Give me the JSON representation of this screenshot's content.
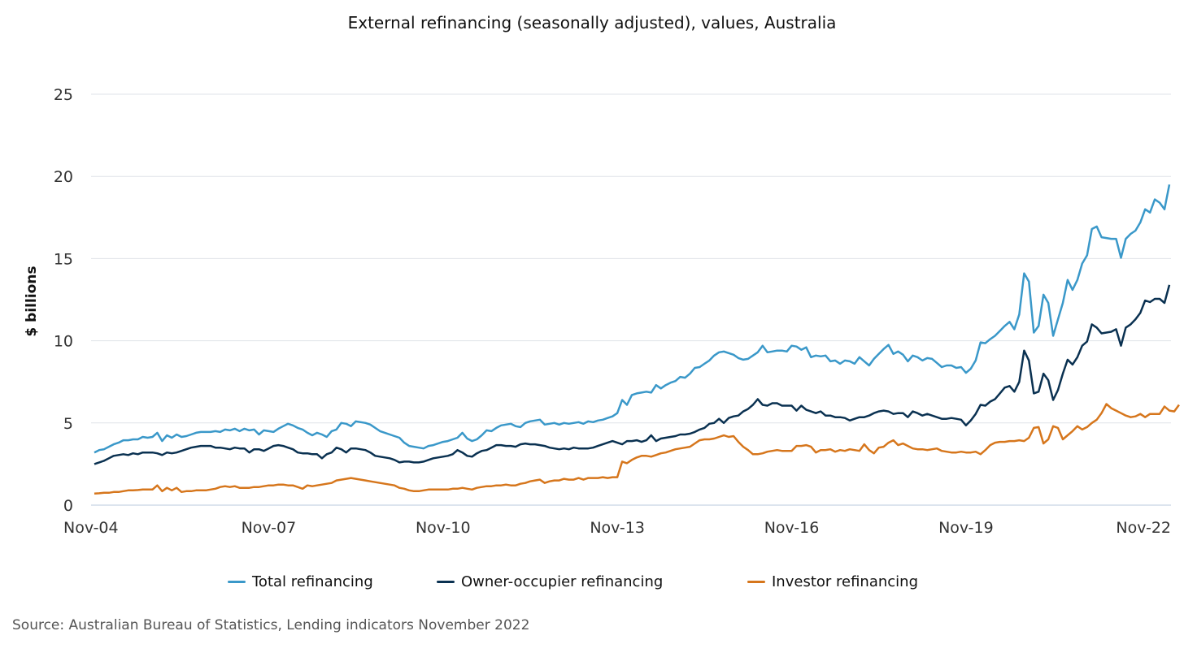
{
  "chart_data": {
    "type": "line",
    "title": "External refinancing (seasonally adjusted), values, Australia",
    "ylabel": "$ billions",
    "xlabel": "",
    "ylim": [
      0,
      25
    ],
    "yticks": [
      "0",
      "5",
      "10",
      "15",
      "20",
      "25"
    ],
    "xticks": [
      "Nov-04",
      "Nov-07",
      "Nov-10",
      "Nov-13",
      "Nov-16",
      "Nov-19",
      "Nov-22"
    ],
    "x_start": "Nov-04",
    "x_end": "Nov-22",
    "frequency": "monthly",
    "grid": "horizontal",
    "legend_position": "bottom",
    "source": "Source: Australian Bureau of Statistics, Lending indicators November 2022",
    "series": [
      {
        "name": "Total refinancing",
        "color": "#3a98c9",
        "values": [
          3.2,
          3.35,
          3.4,
          3.55,
          3.7,
          3.8,
          3.95,
          3.95,
          4.0,
          4.0,
          4.15,
          4.1,
          4.15,
          4.4,
          3.9,
          4.25,
          4.1,
          4.3,
          4.15,
          4.2,
          4.3,
          4.4,
          4.45,
          4.45,
          4.45,
          4.5,
          4.45,
          4.6,
          4.55,
          4.65,
          4.5,
          4.65,
          4.55,
          4.6,
          4.3,
          4.55,
          4.5,
          4.45,
          4.65,
          4.8,
          4.95,
          4.85,
          4.7,
          4.6,
          4.4,
          4.25,
          4.4,
          4.3,
          4.15,
          4.5,
          4.6,
          5.0,
          4.95,
          4.8,
          5.1,
          5.05,
          5.0,
          4.9,
          4.7,
          4.5,
          4.4,
          4.3,
          4.2,
          4.1,
          3.8,
          3.6,
          3.55,
          3.5,
          3.45,
          3.6,
          3.65,
          3.75,
          3.85,
          3.9,
          4.0,
          4.1,
          4.4,
          4.05,
          3.9,
          4.0,
          4.25,
          4.55,
          4.5,
          4.7,
          4.85,
          4.9,
          4.95,
          4.8,
          4.75,
          5.0,
          5.1,
          5.15,
          5.2,
          4.9,
          4.95,
          5.0,
          4.9,
          5.0,
          4.95,
          5.0,
          5.05,
          4.95,
          5.1,
          5.05,
          5.15,
          5.2,
          5.3,
          5.4,
          5.6,
          6.4,
          6.1,
          6.7,
          6.8,
          6.85,
          6.9,
          6.85,
          7.3,
          7.1,
          7.3,
          7.45,
          7.55,
          7.8,
          7.75,
          8.0,
          8.35,
          8.4,
          8.6,
          8.8,
          9.1,
          9.3,
          9.35,
          9.25,
          9.15,
          8.95,
          8.85,
          8.9,
          9.1,
          9.3,
          9.7,
          9.3,
          9.35,
          9.4,
          9.4,
          9.35,
          9.7,
          9.65,
          9.45,
          9.6,
          9.0,
          9.1,
          9.05,
          9.1,
          8.75,
          8.8,
          8.6,
          8.8,
          8.75,
          8.6,
          9.0,
          8.75,
          8.5,
          8.9,
          9.2,
          9.5,
          9.75,
          9.2,
          9.35,
          9.15,
          8.75,
          9.1,
          9.0,
          8.8,
          8.95,
          8.9,
          8.65,
          8.4,
          8.5,
          8.5,
          8.35,
          8.4,
          8.05,
          8.3,
          8.8,
          9.9,
          9.85,
          10.1,
          10.3,
          10.6,
          10.9,
          11.15,
          10.7,
          11.6,
          14.1,
          13.6,
          10.5,
          10.9,
          12.8,
          12.3,
          10.3,
          11.3,
          12.3,
          13.7,
          13.1,
          13.7,
          14.7,
          15.2,
          16.8,
          16.95,
          16.3,
          16.25,
          16.2,
          16.2,
          15.05,
          16.2,
          16.5,
          16.7,
          17.2,
          18.0,
          17.8,
          18.6,
          18.4,
          18.0,
          19.5
        ]
      },
      {
        "name": "Owner-occupier refinancing",
        "color": "#0a3151",
        "values": [
          2.5,
          2.6,
          2.7,
          2.85,
          3.0,
          3.05,
          3.1,
          3.05,
          3.15,
          3.1,
          3.2,
          3.2,
          3.2,
          3.15,
          3.05,
          3.2,
          3.15,
          3.2,
          3.3,
          3.4,
          3.5,
          3.55,
          3.6,
          3.6,
          3.6,
          3.5,
          3.5,
          3.45,
          3.4,
          3.5,
          3.45,
          3.45,
          3.2,
          3.4,
          3.4,
          3.3,
          3.45,
          3.6,
          3.65,
          3.6,
          3.5,
          3.4,
          3.2,
          3.15,
          3.15,
          3.1,
          3.1,
          2.85,
          3.1,
          3.2,
          3.5,
          3.4,
          3.2,
          3.45,
          3.45,
          3.4,
          3.35,
          3.2,
          3.0,
          2.95,
          2.9,
          2.85,
          2.75,
          2.6,
          2.65,
          2.65,
          2.6,
          2.6,
          2.65,
          2.75,
          2.85,
          2.9,
          2.95,
          3.0,
          3.1,
          3.35,
          3.2,
          3.0,
          2.95,
          3.15,
          3.3,
          3.35,
          3.5,
          3.65,
          3.65,
          3.6,
          3.6,
          3.55,
          3.7,
          3.75,
          3.7,
          3.7,
          3.65,
          3.6,
          3.5,
          3.45,
          3.4,
          3.45,
          3.4,
          3.5,
          3.45,
          3.45,
          3.45,
          3.5,
          3.6,
          3.7,
          3.8,
          3.9,
          3.8,
          3.7,
          3.9,
          3.9,
          3.95,
          3.85,
          3.95,
          4.25,
          3.9,
          4.05,
          4.1,
          4.15,
          4.2,
          4.3,
          4.3,
          4.35,
          4.45,
          4.6,
          4.7,
          4.95,
          5.0,
          5.25,
          5.0,
          5.3,
          5.4,
          5.45,
          5.7,
          5.85,
          6.1,
          6.45,
          6.1,
          6.05,
          6.2,
          6.2,
          6.05,
          6.05,
          6.05,
          5.75,
          6.05,
          5.8,
          5.7,
          5.6,
          5.7,
          5.45,
          5.45,
          5.35,
          5.35,
          5.3,
          5.15,
          5.25,
          5.35,
          5.35,
          5.45,
          5.6,
          5.7,
          5.75,
          5.7,
          5.55,
          5.6,
          5.6,
          5.35,
          5.7,
          5.6,
          5.45,
          5.55,
          5.45,
          5.35,
          5.25,
          5.25,
          5.3,
          5.25,
          5.2,
          4.85,
          5.15,
          5.55,
          6.1,
          6.05,
          6.3,
          6.45,
          6.8,
          7.15,
          7.25,
          6.9,
          7.5,
          9.4,
          8.8,
          6.8,
          6.9,
          8.0,
          7.6,
          6.4,
          7.0,
          8.0,
          8.85,
          8.55,
          9.0,
          9.7,
          9.95,
          11.0,
          10.8,
          10.45,
          10.5,
          10.55,
          10.7,
          9.7,
          10.8,
          11.0,
          11.3,
          11.7,
          12.45,
          12.35,
          12.55,
          12.55,
          12.3,
          13.4
        ]
      },
      {
        "name": "Investor refinancing",
        "color": "#d6761c",
        "values": [
          0.7,
          0.72,
          0.75,
          0.75,
          0.8,
          0.8,
          0.85,
          0.9,
          0.9,
          0.92,
          0.95,
          0.95,
          0.95,
          1.2,
          0.85,
          1.05,
          0.9,
          1.05,
          0.8,
          0.85,
          0.85,
          0.9,
          0.9,
          0.9,
          0.95,
          1.0,
          1.1,
          1.15,
          1.1,
          1.15,
          1.05,
          1.05,
          1.05,
          1.1,
          1.1,
          1.15,
          1.2,
          1.2,
          1.25,
          1.25,
          1.2,
          1.2,
          1.1,
          1.0,
          1.2,
          1.15,
          1.2,
          1.25,
          1.3,
          1.35,
          1.5,
          1.55,
          1.6,
          1.65,
          1.6,
          1.55,
          1.5,
          1.45,
          1.4,
          1.35,
          1.3,
          1.25,
          1.2,
          1.05,
          1.0,
          0.9,
          0.85,
          0.85,
          0.9,
          0.95,
          0.95,
          0.95,
          0.95,
          0.95,
          1.0,
          1.0,
          1.05,
          1.0,
          0.95,
          1.05,
          1.1,
          1.15,
          1.15,
          1.2,
          1.2,
          1.25,
          1.2,
          1.2,
          1.3,
          1.35,
          1.45,
          1.5,
          1.55,
          1.35,
          1.45,
          1.5,
          1.5,
          1.6,
          1.55,
          1.55,
          1.65,
          1.55,
          1.65,
          1.65,
          1.65,
          1.7,
          1.65,
          1.7,
          1.7,
          2.65,
          2.55,
          2.75,
          2.9,
          3.0,
          3.0,
          2.95,
          3.05,
          3.15,
          3.2,
          3.3,
          3.4,
          3.45,
          3.5,
          3.55,
          3.75,
          3.95,
          4.0,
          4.0,
          4.05,
          4.15,
          4.25,
          4.15,
          4.2,
          3.85,
          3.55,
          3.35,
          3.1,
          3.1,
          3.15,
          3.25,
          3.3,
          3.35,
          3.3,
          3.3,
          3.3,
          3.6,
          3.6,
          3.65,
          3.55,
          3.2,
          3.35,
          3.35,
          3.4,
          3.25,
          3.35,
          3.3,
          3.4,
          3.35,
          3.3,
          3.7,
          3.35,
          3.15,
          3.5,
          3.55,
          3.8,
          3.95,
          3.65,
          3.75,
          3.6,
          3.45,
          3.4,
          3.4,
          3.35,
          3.4,
          3.45,
          3.3,
          3.25,
          3.2,
          3.2,
          3.25,
          3.2,
          3.2,
          3.25,
          3.1,
          3.35,
          3.65,
          3.8,
          3.85,
          3.85,
          3.9,
          3.9,
          3.95,
          3.9,
          4.1,
          4.7,
          4.75,
          3.75,
          4.0,
          4.8,
          4.7,
          4.0,
          4.25,
          4.5,
          4.8,
          4.6,
          4.75,
          5.0,
          5.2,
          5.6,
          6.15,
          5.9,
          5.75,
          5.6,
          5.45,
          5.35,
          5.4,
          5.55,
          5.35,
          5.55,
          5.55,
          5.55,
          6.0,
          5.75,
          5.7,
          6.1
        ]
      }
    ]
  }
}
